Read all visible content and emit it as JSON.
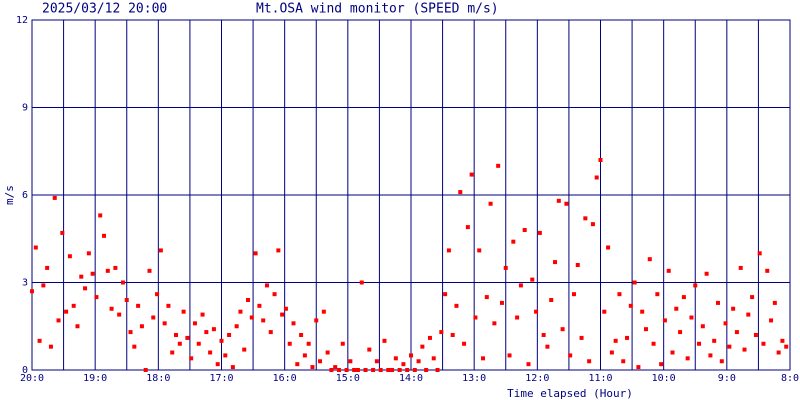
{
  "chart_data": {
    "type": "scatter",
    "timestamp": "2025/03/12 20:00",
    "title": "Mt.OSA wind monitor (SPEED m/s)",
    "y_label": "m/s",
    "x_label": "Time elapsed (Hour)",
    "xlim": [
      0,
      12
    ],
    "ylim": [
      0,
      12
    ],
    "yticks": [
      0,
      3,
      6,
      9,
      12
    ],
    "xticks": [
      {
        "value": 0,
        "label": "20:0"
      },
      {
        "value": 1,
        "label": "19:0"
      },
      {
        "value": 2,
        "label": "18:0"
      },
      {
        "value": 3,
        "label": "17:0"
      },
      {
        "value": 4,
        "label": "16:0"
      },
      {
        "value": 5,
        "label": "15:0"
      },
      {
        "value": 6,
        "label": "14:0"
      },
      {
        "value": 7,
        "label": "13:0"
      },
      {
        "value": 8,
        "label": "12:0"
      },
      {
        "value": 9,
        "label": "11:0"
      },
      {
        "value": 10,
        "label": "10:0"
      },
      {
        "value": 11,
        "label": "9:0"
      },
      {
        "value": 12,
        "label": "8:0"
      }
    ],
    "xminor": [
      0.5,
      1.5,
      2.5,
      3.5,
      4.5,
      5.5,
      6.5,
      7.5,
      8.5,
      9.5,
      10.5,
      11.5
    ],
    "grid": true,
    "grid_color": "#000080",
    "color": "#ff0000",
    "x": [
      0,
      0.06,
      0.12,
      0.18,
      0.24,
      0.3,
      0.36,
      0.42,
      0.48,
      0.54,
      0.6,
      0.66,
      0.72,
      0.78,
      0.84,
      0.9,
      0.96,
      1.02,
      1.08,
      1.14,
      1.2,
      1.26,
      1.32,
      1.38,
      1.44,
      1.5,
      1.56,
      1.62,
      1.68,
      1.74,
      1.8,
      1.86,
      1.92,
      1.98,
      2.04,
      2.1,
      2.16,
      2.22,
      2.28,
      2.34,
      2.4,
      2.46,
      2.52,
      2.58,
      2.64,
      2.7,
      2.76,
      2.82,
      2.88,
      2.94,
      3.0,
      3.06,
      3.12,
      3.18,
      3.24,
      3.3,
      3.36,
      3.42,
      3.48,
      3.54,
      3.6,
      3.66,
      3.72,
      3.78,
      3.84,
      3.9,
      3.96,
      4.02,
      4.08,
      4.14,
      4.2,
      4.26,
      4.32,
      4.38,
      4.44,
      4.5,
      4.56,
      4.62,
      4.68,
      4.74,
      4.8,
      4.86,
      4.92,
      4.98,
      5.04,
      5.1,
      5.16,
      5.22,
      5.28,
      5.34,
      5.4,
      5.46,
      5.52,
      5.58,
      5.64,
      5.7,
      5.76,
      5.82,
      5.88,
      5.94,
      6.0,
      6.06,
      6.12,
      6.18,
      6.24,
      6.3,
      6.36,
      6.42,
      6.48,
      6.54,
      6.6,
      6.66,
      6.72,
      6.78,
      6.84,
      6.9,
      6.96,
      7.02,
      7.08,
      7.14,
      7.2,
      7.26,
      7.32,
      7.38,
      7.44,
      7.5,
      7.56,
      7.62,
      7.68,
      7.74,
      7.8,
      7.86,
      7.92,
      7.98,
      8.04,
      8.1,
      8.16,
      8.22,
      8.28,
      8.34,
      8.4,
      8.46,
      8.52,
      8.58,
      8.64,
      8.7,
      8.76,
      8.82,
      8.88,
      8.94,
      9.0,
      9.06,
      9.12,
      9.18,
      9.24,
      9.3,
      9.36,
      9.42,
      9.48,
      9.54,
      9.6,
      9.66,
      9.72,
      9.78,
      9.84,
      9.9,
      9.96,
      10.02,
      10.08,
      10.14,
      10.2,
      10.26,
      10.32,
      10.38,
      10.44,
      10.5,
      10.56,
      10.62,
      10.68,
      10.74,
      10.8,
      10.86,
      10.92,
      10.98,
      11.04,
      11.1,
      11.16,
      11.22,
      11.28,
      11.34,
      11.4,
      11.46,
      11.52,
      11.58,
      11.64,
      11.7,
      11.76,
      11.82,
      11.88,
      11.94
    ],
    "values": [
      2.7,
      4.2,
      1.0,
      2.9,
      3.5,
      0.8,
      5.9,
      1.7,
      4.7,
      2.0,
      3.9,
      2.2,
      1.5,
      3.2,
      2.8,
      4.0,
      3.3,
      2.5,
      5.3,
      4.6,
      3.4,
      2.1,
      3.5,
      1.9,
      3.0,
      2.4,
      1.3,
      0.8,
      2.2,
      1.5,
      0.0,
      3.4,
      1.8,
      2.6,
      4.1,
      1.6,
      2.2,
      0.6,
      1.2,
      0.9,
      2.0,
      1.1,
      0.4,
      1.6,
      0.9,
      1.9,
      1.3,
      0.6,
      1.4,
      0.2,
      1.0,
      0.5,
      1.2,
      0.1,
      1.5,
      2.0,
      0.7,
      2.4,
      1.8,
      4.0,
      2.2,
      1.7,
      2.9,
      1.3,
      2.6,
      4.1,
      1.9,
      2.1,
      0.9,
      1.6,
      0.2,
      1.2,
      0.5,
      0.9,
      0.1,
      1.7,
      0.3,
      2.0,
      0.6,
      0.0,
      0.1,
      0.0,
      0.9,
      0.0,
      0.3,
      0.0,
      0.0,
      3.0,
      0.0,
      0.7,
      0.0,
      0.3,
      0.0,
      1.0,
      0.0,
      0.0,
      0.4,
      0.0,
      0.2,
      0.0,
      0.5,
      0.0,
      0.3,
      0.8,
      0.0,
      1.1,
      0.4,
      0.0,
      1.3,
      2.6,
      4.1,
      1.2,
      2.2,
      6.1,
      0.9,
      4.9,
      6.7,
      1.8,
      4.1,
      0.4,
      2.5,
      5.7,
      1.6,
      7.0,
      2.3,
      3.5,
      0.5,
      4.4,
      1.8,
      2.9,
      4.8,
      0.2,
      3.1,
      2.0,
      4.7,
      1.2,
      0.8,
      2.4,
      3.7,
      5.8,
      1.4,
      5.7,
      0.5,
      2.6,
      3.6,
      1.1,
      5.2,
      0.3,
      5.0,
      6.6,
      7.2,
      2.0,
      4.2,
      0.6,
      1.0,
      2.6,
      0.3,
      1.1,
      2.2,
      3.0,
      0.1,
      2.0,
      1.4,
      3.8,
      0.9,
      2.6,
      0.2,
      1.7,
      3.4,
      0.6,
      2.1,
      1.3,
      2.5,
      0.4,
      1.8,
      2.9,
      0.9,
      1.5,
      3.3,
      0.5,
      1.0,
      2.3,
      0.3,
      1.6,
      0.8,
      2.1,
      1.3,
      3.5,
      0.7,
      1.9,
      2.5,
      1.2,
      4.0,
      0.9,
      3.4,
      1.7,
      2.3,
      0.6,
      1.0,
      0.8
    ]
  }
}
